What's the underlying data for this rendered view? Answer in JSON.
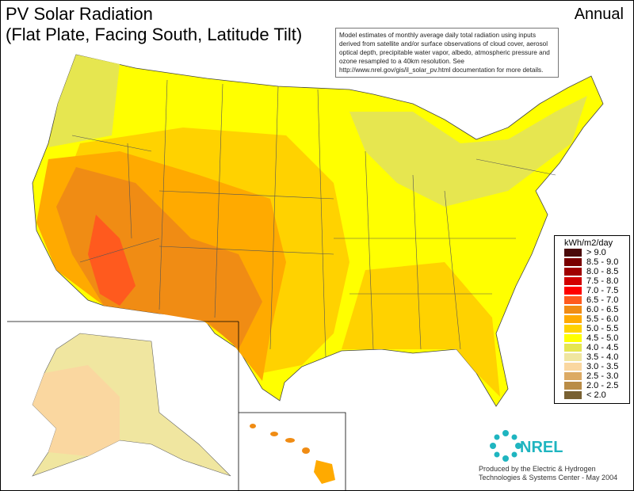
{
  "title_line1": "PV Solar Radiation",
  "title_line2": "(Flat Plate, Facing South, Latitude Tilt)",
  "period": "Annual",
  "note": "Model estimates of monthly average daily total radiation using inputs derived from satellite and/or surface observations of cloud cover, aerosol optical depth, precipitable water vapor, albedo, atmospheric pressure and ozone resampled to a 40km resolution.  See http://www.nrel.gov/gis/il_solar_pv.html documentation for more details.",
  "legend": {
    "title": "kWh/m2/day",
    "items": [
      {
        "label": "> 9.0",
        "color": "#4a0a0a"
      },
      {
        "label": "8.5 - 9.0",
        "color": "#7a0000"
      },
      {
        "label": "8.0 - 8.5",
        "color": "#a00000"
      },
      {
        "label": "7.5 - 8.0",
        "color": "#d20000"
      },
      {
        "label": "7.0 - 7.5",
        "color": "#ff0000"
      },
      {
        "label": "6.5 - 7.0",
        "color": "#ff5a1e"
      },
      {
        "label": "6.0 - 6.5",
        "color": "#f08c14"
      },
      {
        "label": "5.5 - 6.0",
        "color": "#ffaa00"
      },
      {
        "label": "5.0 - 5.5",
        "color": "#ffd200"
      },
      {
        "label": "4.5 - 5.0",
        "color": "#ffff00"
      },
      {
        "label": "4.0 - 4.5",
        "color": "#e6e650"
      },
      {
        "label": "3.5 - 4.0",
        "color": "#f0e6a0"
      },
      {
        "label": "3.0 - 3.5",
        "color": "#fad7a0"
      },
      {
        "label": "2.5 - 3.0",
        "color": "#dcaa64"
      },
      {
        "label": "2.0 - 2.5",
        "color": "#b98c46"
      },
      {
        "label": "< 2.0",
        "color": "#786032"
      }
    ]
  },
  "logo_text": "NREL",
  "credit_line1": "Produced by the Electric & Hydrogen",
  "credit_line2": "Technologies & Systems Center - May 2004"
}
